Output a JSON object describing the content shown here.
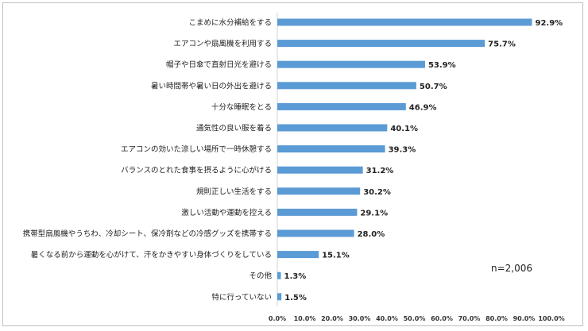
{
  "chart_data": {
    "type": "bar",
    "orientation": "horizontal",
    "categories": [
      "こまめに水分補給をする",
      "エアコンや扇風機を利用する",
      "帽子や日傘で直射日光を避ける",
      "暑い時間帯や暑い日の外出を避ける",
      "十分な睡眠をとる",
      "通気性の良い服を着る",
      "エアコンの効いた涼しい場所で一時休憩する",
      "バランスのとれた食事を摂るように心がける",
      "規則正しい生活をする",
      "激しい活動や運動を控える",
      "携帯型扇風機やうちわ、冷却シート、保冷剤などの冷感グッズを携帯する",
      "暑くなる前から運動を心がけて、汗をかきやすい身体づくりをしている",
      "その他",
      "特に行っていない"
    ],
    "values": [
      92.9,
      75.7,
      53.9,
      50.7,
      46.9,
      40.1,
      39.3,
      31.2,
      30.2,
      29.1,
      28.0,
      15.1,
      1.3,
      1.5
    ],
    "value_labels": [
      "92.9%",
      "75.7%",
      "53.9%",
      "50.7%",
      "46.9%",
      "40.1%",
      "39.3%",
      "31.2%",
      "30.2%",
      "29.1%",
      "28.0%",
      "15.1%",
      "1.3%",
      "1.5%"
    ],
    "xlim": [
      0,
      100
    ],
    "x_ticks": [
      "0.0%",
      "10.0%",
      "20.0%",
      "30.0%",
      "40.0%",
      "50.0%",
      "60.0%",
      "70.0%",
      "80.0%",
      "90.0%",
      "100.0%"
    ],
    "bar_color": "#5b9bd5",
    "grid": false,
    "annotation": "n=2,006"
  }
}
